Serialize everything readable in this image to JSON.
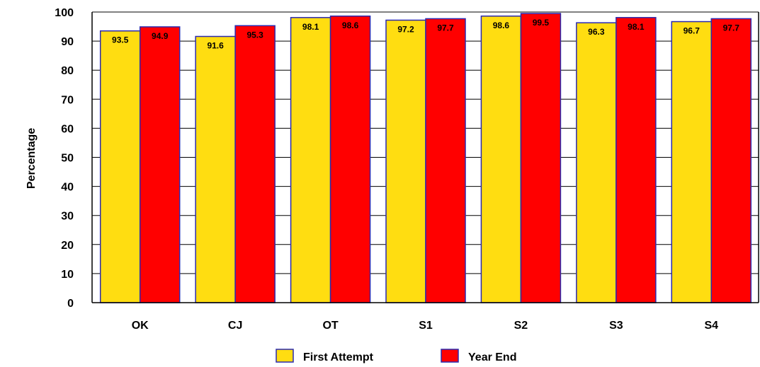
{
  "chart_data": {
    "type": "bar",
    "title": "",
    "xlabel": "",
    "ylabel": "Percentage",
    "ylim": [
      0,
      100
    ],
    "yticks": [
      0,
      10,
      20,
      30,
      40,
      50,
      60,
      70,
      80,
      90,
      100
    ],
    "grid": "horizontal",
    "legend_position": "bottom",
    "categories": [
      "OK",
      "CJ",
      "OT",
      "S1",
      "S2",
      "S3",
      "S4"
    ],
    "series": [
      {
        "name": "First Attempt",
        "color": "#FFDD11",
        "values": [
          93.5,
          91.6,
          98.1,
          97.2,
          98.6,
          96.3,
          96.7
        ]
      },
      {
        "name": "Year End",
        "color": "#FF0000",
        "values": [
          94.9,
          95.3,
          98.6,
          97.7,
          99.5,
          98.1,
          97.7
        ]
      }
    ],
    "bar_edge_color": "#2A2AB0"
  }
}
